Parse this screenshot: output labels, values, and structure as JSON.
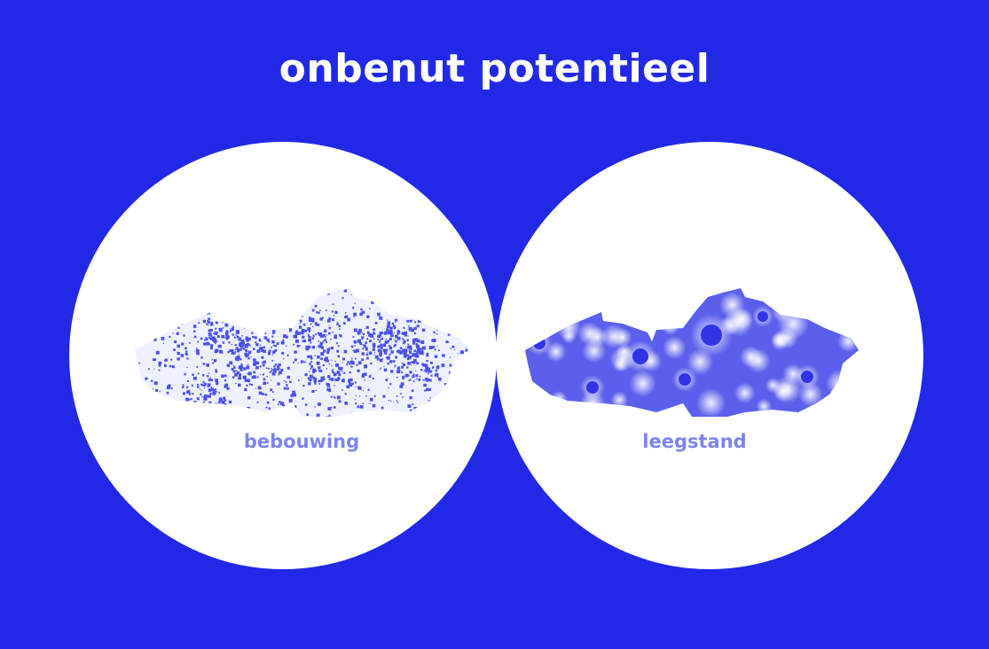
{
  "title": "onbenut potentieel",
  "panels": [
    {
      "label": "bebouwing",
      "map_style": "dense-speckle"
    },
    {
      "label": "leegstand",
      "map_style": "heatmap-glow"
    }
  ],
  "colors": {
    "background": "#2229e6",
    "circle": "#ffffff",
    "map": "#4b51ea",
    "label": "#7d84ee"
  }
}
